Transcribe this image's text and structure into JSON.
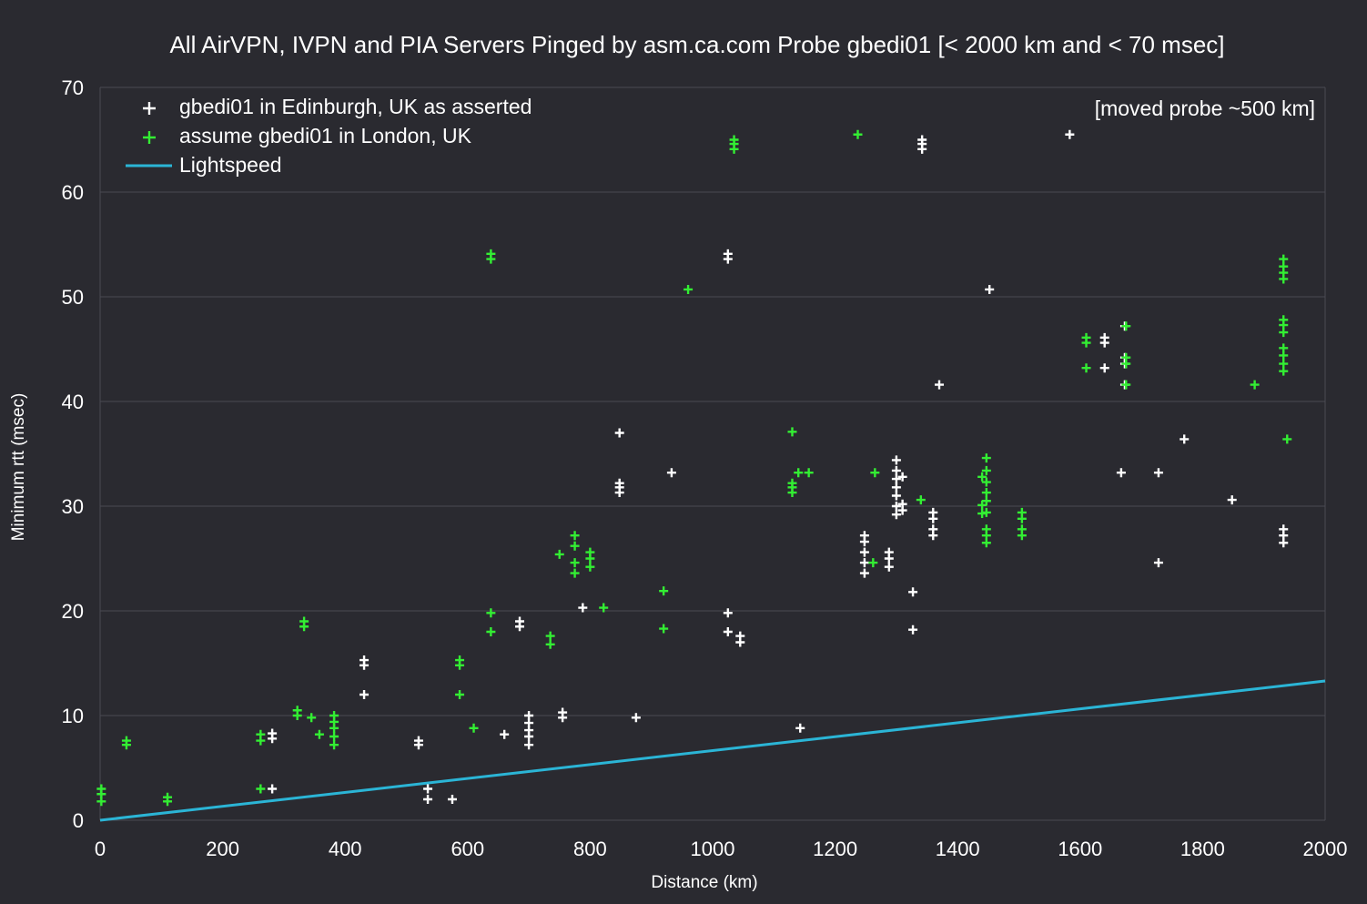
{
  "colors": {
    "background": "#2a2a30",
    "grid": "#4a4a52",
    "text": "#ffffff",
    "edinburgh_marker": "#ffffff",
    "london_marker": "#33ee33",
    "lightspeed_line": "#2bb5d6"
  },
  "chart_data": {
    "type": "scatter",
    "title": "All AirVPN, IVPN and PIA Servers Pinged by asm.ca.com Probe gbedi01 [< 2000 km and < 70 msec]",
    "xlabel": "Distance (km)",
    "ylabel": "Minimum rtt (msec)",
    "xlim": [
      0,
      2000
    ],
    "ylim": [
      0,
      70
    ],
    "xticks": [
      0,
      200,
      400,
      600,
      800,
      1000,
      1200,
      1400,
      1600,
      1800,
      2000
    ],
    "yticks": [
      0,
      10,
      20,
      30,
      40,
      50,
      60,
      70
    ],
    "grid": "horizontal",
    "legend_position": "top-left",
    "annotation": "[moved probe ~500 km]",
    "series": [
      {
        "name": "gbedi01 in Edinburgh, UK as asserted",
        "marker": "plus",
        "color": "#ffffff",
        "points": [
          [
            281,
            3
          ],
          [
            281,
            7.8
          ],
          [
            281,
            8.3
          ],
          [
            431,
            12
          ],
          [
            431,
            14.8
          ],
          [
            431,
            15.3
          ],
          [
            520,
            7.2
          ],
          [
            520,
            7.6
          ],
          [
            535,
            2
          ],
          [
            535,
            3
          ],
          [
            575,
            2
          ],
          [
            660,
            8.2
          ],
          [
            685,
            18.5
          ],
          [
            685,
            19
          ],
          [
            700,
            7.2
          ],
          [
            700,
            8
          ],
          [
            700,
            8.6
          ],
          [
            700,
            9.3
          ],
          [
            700,
            10
          ],
          [
            755,
            9.8
          ],
          [
            755,
            10.3
          ],
          [
            788,
            20.3
          ],
          [
            848,
            37
          ],
          [
            848,
            31.3
          ],
          [
            848,
            31.8
          ],
          [
            848,
            32.2
          ],
          [
            875,
            9.8
          ],
          [
            933,
            33.2
          ],
          [
            1025,
            19.8
          ],
          [
            1025,
            18
          ],
          [
            1025,
            53.6
          ],
          [
            1025,
            54.1
          ],
          [
            1045,
            17
          ],
          [
            1045,
            17.6
          ],
          [
            1143,
            8.8
          ],
          [
            1248,
            23.6
          ],
          [
            1248,
            24.6
          ],
          [
            1248,
            25.6
          ],
          [
            1248,
            26.6
          ],
          [
            1248,
            27.2
          ],
          [
            1288,
            24.2
          ],
          [
            1288,
            25
          ],
          [
            1288,
            25.6
          ],
          [
            1300,
            29.2
          ],
          [
            1300,
            30
          ],
          [
            1300,
            31
          ],
          [
            1300,
            31.8
          ],
          [
            1300,
            32.6
          ],
          [
            1300,
            33.4
          ],
          [
            1300,
            34.4
          ],
          [
            1310,
            32.8
          ],
          [
            1310,
            29.6
          ],
          [
            1310,
            30.2
          ],
          [
            1327,
            18.2
          ],
          [
            1327,
            21.8
          ],
          [
            1342,
            64.1
          ],
          [
            1342,
            64.6
          ],
          [
            1342,
            65
          ],
          [
            1360,
            27.2
          ],
          [
            1360,
            27.8
          ],
          [
            1360,
            28.8
          ],
          [
            1360,
            29.4
          ],
          [
            1370,
            41.6
          ],
          [
            1452,
            50.7
          ],
          [
            1583,
            65.5
          ],
          [
            1640,
            43.2
          ],
          [
            1640,
            45.6
          ],
          [
            1640,
            46.1
          ],
          [
            1667,
            33.2
          ],
          [
            1673,
            41.6
          ],
          [
            1673,
            43.6
          ],
          [
            1673,
            44.2
          ],
          [
            1673,
            47.2
          ],
          [
            1728,
            24.6
          ],
          [
            1728,
            33.2
          ],
          [
            1770,
            36.4
          ],
          [
            1848,
            30.6
          ],
          [
            1932,
            26.5
          ],
          [
            1932,
            27.2
          ],
          [
            1932,
            27.8
          ]
        ]
      },
      {
        "name": "assume gbedi01 in London, UK",
        "marker": "plus",
        "color": "#33ee33",
        "points": [
          [
            2,
            1.8
          ],
          [
            2,
            2.5
          ],
          [
            2,
            3
          ],
          [
            43,
            7.2
          ],
          [
            43,
            7.6
          ],
          [
            110,
            1.8
          ],
          [
            110,
            2.2
          ],
          [
            262,
            3
          ],
          [
            262,
            7.6
          ],
          [
            262,
            8.2
          ],
          [
            322,
            10
          ],
          [
            322,
            10.5
          ],
          [
            333,
            18.5
          ],
          [
            333,
            19
          ],
          [
            345,
            9.8
          ],
          [
            358,
            8.2
          ],
          [
            382,
            7.2
          ],
          [
            382,
            8
          ],
          [
            382,
            8.8
          ],
          [
            382,
            9.4
          ],
          [
            382,
            10
          ],
          [
            587,
            12
          ],
          [
            587,
            14.8
          ],
          [
            587,
            15.3
          ],
          [
            610,
            8.8
          ],
          [
            638,
            18
          ],
          [
            638,
            19.8
          ],
          [
            638,
            53.6
          ],
          [
            638,
            54.1
          ],
          [
            735,
            16.8
          ],
          [
            735,
            17.6
          ],
          [
            750,
            25.4
          ],
          [
            775,
            23.6
          ],
          [
            775,
            24.6
          ],
          [
            775,
            26.2
          ],
          [
            775,
            27.2
          ],
          [
            800,
            24.2
          ],
          [
            800,
            25
          ],
          [
            800,
            25.6
          ],
          [
            822,
            20.3
          ],
          [
            920,
            18.3
          ],
          [
            920,
            21.9
          ],
          [
            960,
            50.7
          ],
          [
            1035,
            64.1
          ],
          [
            1035,
            64.6
          ],
          [
            1035,
            65
          ],
          [
            1130,
            37.1
          ],
          [
            1130,
            31.3
          ],
          [
            1130,
            31.8
          ],
          [
            1130,
            32.2
          ],
          [
            1140,
            33.2
          ],
          [
            1157,
            33.2
          ],
          [
            1237,
            65.5
          ],
          [
            1262,
            24.6
          ],
          [
            1265,
            33.2
          ],
          [
            1340,
            30.6
          ],
          [
            1440,
            29.3
          ],
          [
            1440,
            30.1
          ],
          [
            1440,
            32.8
          ],
          [
            1447,
            26.5
          ],
          [
            1447,
            27.2
          ],
          [
            1447,
            27.8
          ],
          [
            1447,
            29.4
          ],
          [
            1447,
            30.5
          ],
          [
            1447,
            31.3
          ],
          [
            1447,
            32.3
          ],
          [
            1447,
            33.4
          ],
          [
            1447,
            34.6
          ],
          [
            1505,
            27.2
          ],
          [
            1505,
            27.8
          ],
          [
            1505,
            28.8
          ],
          [
            1505,
            29.4
          ],
          [
            1610,
            43.2
          ],
          [
            1610,
            45.6
          ],
          [
            1610,
            46.1
          ],
          [
            1675,
            41.6
          ],
          [
            1675,
            43.6
          ],
          [
            1675,
            44.2
          ],
          [
            1675,
            47.2
          ],
          [
            1885,
            41.6
          ],
          [
            1932,
            42.9
          ],
          [
            1932,
            43.6
          ],
          [
            1932,
            44.4
          ],
          [
            1932,
            45.1
          ],
          [
            1932,
            46.6
          ],
          [
            1932,
            47.3
          ],
          [
            1932,
            47.8
          ],
          [
            1932,
            51.7
          ],
          [
            1932,
            52.3
          ],
          [
            1932,
            52.9
          ],
          [
            1932,
            53.6
          ],
          [
            1938,
            36.4
          ]
        ]
      },
      {
        "name": "Lightspeed",
        "marker": "line",
        "color": "#2bb5d6",
        "points": [
          [
            0,
            0
          ],
          [
            2000,
            13.3
          ]
        ]
      }
    ]
  }
}
